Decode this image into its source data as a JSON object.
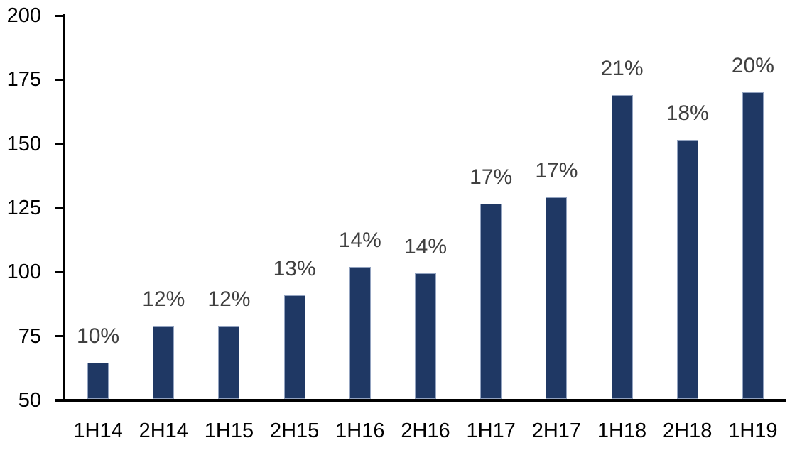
{
  "chart_data": {
    "type": "bar",
    "title": "",
    "xlabel": "",
    "ylabel": "",
    "categories": [
      "1H14",
      "2H14",
      "1H15",
      "2H15",
      "1H16",
      "2H16",
      "1H17",
      "2H17",
      "1H18",
      "2H18",
      "1H19"
    ],
    "values": [
      64,
      78.5,
      78.5,
      90.5,
      101.5,
      99,
      126,
      128.5,
      168.5,
      151,
      169.5
    ],
    "bar_labels": [
      "10%",
      "12%",
      "12%",
      "13%",
      "14%",
      "14%",
      "17%",
      "17%",
      "21%",
      "18%",
      "20%"
    ],
    "ylim": [
      50,
      200
    ],
    "yticks": [
      50,
      75,
      100,
      125,
      150,
      175,
      200
    ],
    "grid": false,
    "legend": "none",
    "colors": {
      "bar_fill": "#1F3864",
      "bar_border": "#93A3C0",
      "data_label": "#404040",
      "axis_line": "#000000",
      "tick_label": "#000000",
      "background": "#FFFFFF"
    }
  }
}
